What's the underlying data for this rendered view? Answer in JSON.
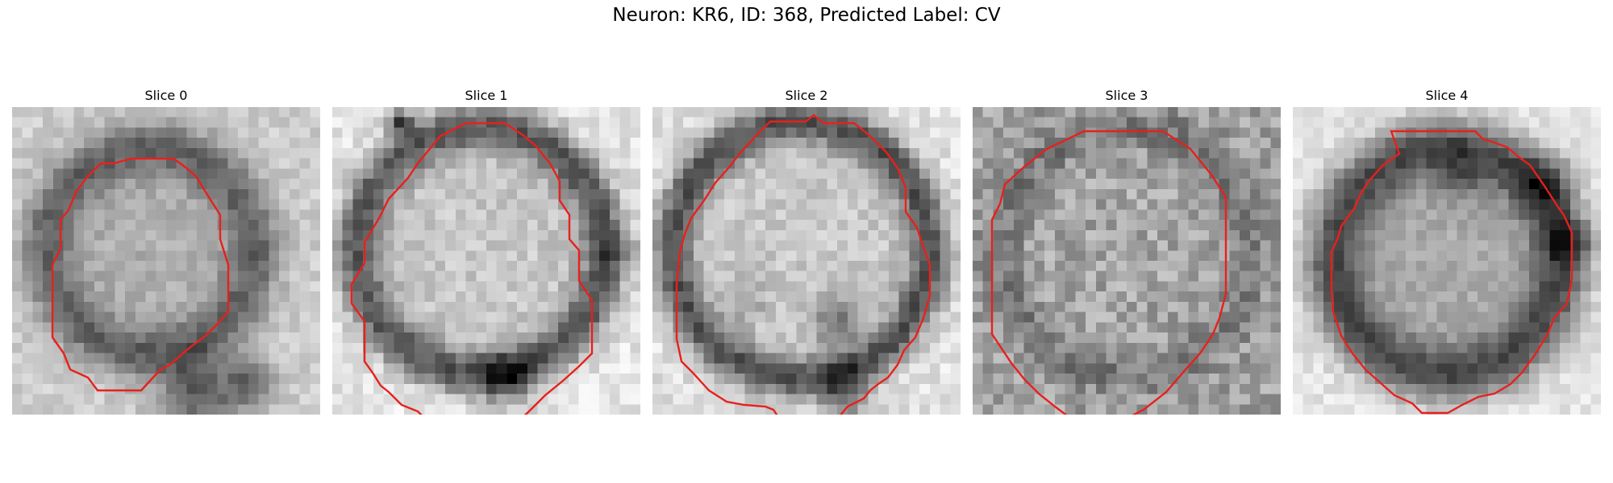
{
  "figure": {
    "title": "Neuron: KR6, ID: 368, Predicted Label: CV"
  },
  "panels": [
    {
      "label": "Slice 0"
    },
    {
      "label": "Slice 1"
    },
    {
      "label": "Slice 2"
    },
    {
      "label": "Slice 3"
    },
    {
      "label": "Slice 4"
    }
  ],
  "colors": {
    "contour": "#e8201c",
    "background": "#ffffff"
  },
  "image": {
    "colormap": "grayscale",
    "grid": "30x30 pixels"
  }
}
